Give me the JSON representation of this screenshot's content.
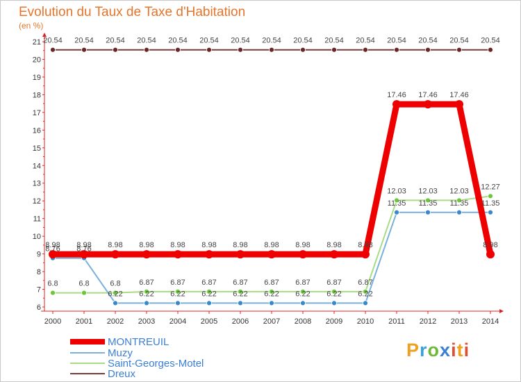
{
  "title": "Evolution du Taux de Taxe d'Habitation",
  "subtitle": "(en %)",
  "logo": "Proxiti",
  "chart_data": {
    "type": "line",
    "title": "Evolution du Taux de Taxe d'Habitation",
    "ylabel": "(en %)",
    "xlabel": "",
    "ylim": [
      6,
      21
    ],
    "yticks": [
      6,
      7,
      8,
      9,
      10,
      11,
      12,
      13,
      14,
      15,
      16,
      17,
      18,
      19,
      20,
      21
    ],
    "grid": false,
    "legend": "bottom-left",
    "categories": [
      "2000",
      "2001",
      "2002",
      "2003",
      "2004",
      "2005",
      "2006",
      "2007",
      "2008",
      "2009",
      "2010",
      "2011",
      "2012",
      "2013",
      "2014"
    ],
    "series": [
      {
        "name": "MONTREUIL",
        "color": "#ee0000",
        "marker": "#ee0000",
        "emphasis": true,
        "values": [
          8.98,
          8.98,
          8.98,
          8.98,
          8.98,
          8.98,
          8.98,
          8.98,
          8.98,
          8.98,
          8.98,
          17.46,
          17.46,
          17.46,
          8.98
        ],
        "labels": [
          "8.98",
          "8.98",
          "8.98",
          "8.98",
          "8.98",
          "8.98",
          "8.98",
          "8.98",
          "8.98",
          "8.98",
          "8.98",
          "17.46",
          "17.46",
          "17.46",
          "8.98"
        ]
      },
      {
        "name": "Muzy",
        "color": "#7ab0dc",
        "marker": "#3a88cc",
        "emphasis": false,
        "values": [
          8.76,
          8.76,
          6.22,
          6.22,
          6.22,
          6.22,
          6.22,
          6.22,
          6.22,
          6.22,
          6.22,
          11.35,
          11.35,
          11.35,
          11.35
        ],
        "labels": [
          "8.76",
          "8.76",
          "6.22",
          "6.22",
          "6.22",
          "6.22",
          "6.22",
          "6.22",
          "6.22",
          "6.22",
          "6.22",
          "11.35",
          "11.35",
          "11.35",
          "11.35"
        ]
      },
      {
        "name": "Saint-Georges-Motel",
        "color": "#a8dc84",
        "marker": "#6cc83a",
        "emphasis": false,
        "values": [
          6.8,
          6.8,
          6.8,
          6.87,
          6.87,
          6.87,
          6.87,
          6.87,
          6.87,
          6.87,
          6.87,
          12.03,
          12.03,
          12.03,
          12.27
        ],
        "labels": [
          "6.8",
          "6.8",
          "6.8",
          "6.87",
          "6.87",
          "6.87",
          "6.87",
          "6.87",
          "6.87",
          "6.87",
          "6.87",
          "12.03",
          "12.03",
          "12.03",
          "12.27"
        ]
      },
      {
        "name": "Dreux",
        "color": "#7a3a3a",
        "marker": "#6a2626",
        "emphasis": false,
        "values": [
          20.54,
          20.54,
          20.54,
          20.54,
          20.54,
          20.54,
          20.54,
          20.54,
          20.54,
          20.54,
          20.54,
          20.54,
          20.54,
          20.54,
          20.54
        ],
        "labels": [
          "20.54",
          "20.54",
          "20.54",
          "20.54",
          "20.54",
          "20.54",
          "20.54",
          "20.54",
          "20.54",
          "20.54",
          "20.54",
          "20.54",
          "20.54",
          "20.54",
          "20.54"
        ]
      }
    ]
  }
}
